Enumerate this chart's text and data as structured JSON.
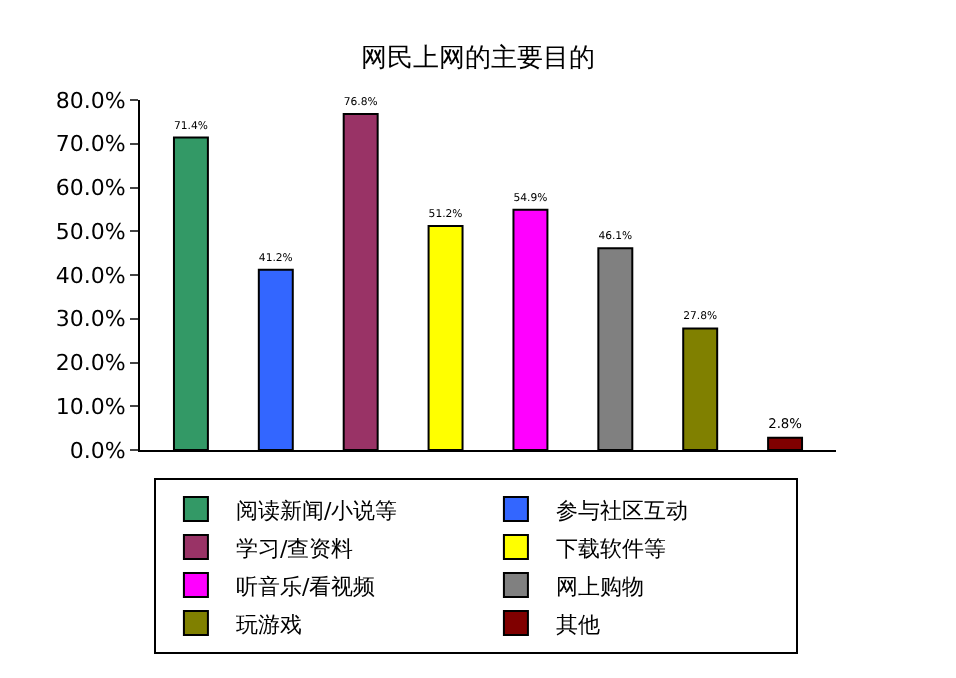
{
  "chart_data": {
    "type": "bar",
    "title": "网民上网的主要目的",
    "categories": [
      null,
      null,
      null,
      null,
      null,
      null,
      null,
      null
    ],
    "ylim": [
      0,
      80
    ],
    "yticks": [
      {
        "value": 0,
        "label": "0.0%"
      },
      {
        "value": 10,
        "label": "10.0%"
      },
      {
        "value": 20,
        "label": "20.0%"
      },
      {
        "value": 30,
        "label": "30.0%"
      },
      {
        "value": 40,
        "label": "40.0%"
      },
      {
        "value": 50,
        "label": "50.0%"
      },
      {
        "value": 60,
        "label": "60.0%"
      },
      {
        "value": 70,
        "label": "70.0%"
      },
      {
        "value": 80,
        "label": "80.0%"
      }
    ],
    "grid": false,
    "legend": "bottom",
    "tick_labels": "y",
    "series": [
      {
        "name": "阅读新闻/小说等",
        "color": "#339966",
        "values": [
          71.4,
          null,
          null,
          null,
          null,
          null,
          null,
          null
        ],
        "value_labels": [
          "71.4%",
          null,
          null,
          null,
          null,
          null,
          null,
          null
        ]
      },
      {
        "name": "参与社区互动",
        "color": "#3366ff",
        "values": [
          null,
          41.2,
          null,
          null,
          null,
          null,
          null,
          null
        ],
        "value_labels": [
          null,
          "41.2%",
          null,
          null,
          null,
          null,
          null,
          null
        ]
      },
      {
        "name": "学习/查资料",
        "color": "#993366",
        "values": [
          null,
          null,
          76.8,
          null,
          null,
          null,
          null,
          null
        ],
        "value_labels": [
          null,
          null,
          "76.8%",
          null,
          null,
          null,
          null,
          null
        ]
      },
      {
        "name": "下载软件等",
        "color": "#ffff00",
        "values": [
          null,
          null,
          null,
          51.2,
          null,
          null,
          null,
          null
        ],
        "value_labels": [
          null,
          null,
          null,
          "51.2%",
          null,
          null,
          null,
          null
        ]
      },
      {
        "name": "听音乐/看视频",
        "color": "#ff00ff",
        "values": [
          null,
          null,
          null,
          null,
          54.9,
          null,
          null,
          null
        ],
        "value_labels": [
          null,
          null,
          null,
          null,
          "54.9%",
          null,
          null,
          null
        ]
      },
      {
        "name": "网上购物",
        "color": "#808080",
        "values": [
          null,
          null,
          null,
          null,
          null,
          46.1,
          null,
          null
        ],
        "value_labels": [
          null,
          null,
          null,
          null,
          null,
          "46.1%",
          null,
          null
        ]
      },
      {
        "name": "玩游戏",
        "color": "#808000",
        "values": [
          null,
          null,
          null,
          null,
          null,
          null,
          27.8,
          null
        ],
        "value_labels": [
          null,
          null,
          null,
          null,
          null,
          null,
          "27.8%",
          null
        ]
      },
      {
        "name": "其他",
        "color": "#800000",
        "values": [
          null,
          null,
          null,
          null,
          null,
          null,
          null,
          2.8
        ],
        "value_labels": [
          null,
          null,
          null,
          null,
          null,
          null,
          null,
          "2.8%"
        ]
      }
    ]
  }
}
